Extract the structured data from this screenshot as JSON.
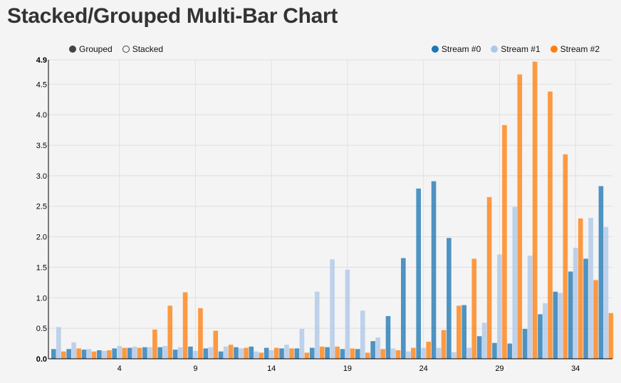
{
  "title": "Stacked/Grouped Multi-Bar Chart",
  "controls": [
    {
      "label": "Grouped",
      "selected": true
    },
    {
      "label": "Stacked",
      "selected": false
    }
  ],
  "chart_data": {
    "type": "bar",
    "mode": "grouped",
    "title": "Stacked/Grouped Multi-Bar Chart",
    "xlabel": "",
    "ylabel": "",
    "ylim": [
      0,
      4.9
    ],
    "yticks": [
      0.0,
      0.5,
      1.0,
      1.5,
      2.0,
      2.5,
      3.0,
      3.5,
      4.0,
      4.5,
      4.9
    ],
    "ytick_labels": [
      "0.0",
      "0.5",
      "1.0",
      "1.5",
      "2.0",
      "2.5",
      "3.0",
      "3.5",
      "4.0",
      "4.5",
      "4.9"
    ],
    "xticks": [
      "4",
      "9",
      "14",
      "19",
      "24",
      "29",
      "34"
    ],
    "legend_position": "top-right",
    "grid": true,
    "categories": [
      "0",
      "1",
      "2",
      "3",
      "4",
      "5",
      "6",
      "7",
      "8",
      "9",
      "10",
      "11",
      "12",
      "13",
      "14",
      "15",
      "16",
      "17",
      "18",
      "19",
      "20",
      "21",
      "22",
      "23",
      "24",
      "25",
      "26",
      "27",
      "28",
      "29",
      "30",
      "31",
      "32",
      "33",
      "34",
      "35"
    ],
    "series": [
      {
        "name": "Stream #0",
        "color": "#1f77b4",
        "values": [
          0.16,
          0.16,
          0.15,
          0.14,
          0.17,
          0.18,
          0.19,
          0.19,
          0.15,
          0.2,
          0.17,
          0.12,
          0.19,
          0.2,
          0.18,
          0.17,
          0.17,
          0.18,
          0.19,
          0.16,
          0.16,
          0.29,
          0.7,
          1.65,
          2.79,
          2.91,
          1.98,
          0.88,
          0.37,
          0.26,
          0.25,
          0.49,
          0.73,
          1.1,
          1.43,
          1.64
        ]
      },
      {
        "name": "Stream #1",
        "color": "#aec7e8",
        "values": [
          0.52,
          0.27,
          0.16,
          0.13,
          0.21,
          0.2,
          0.19,
          0.21,
          0.19,
          0.13,
          0.19,
          0.2,
          0.17,
          0.12,
          0.14,
          0.23,
          0.49,
          1.1,
          1.63,
          1.46,
          0.79,
          0.35,
          0.17,
          0.12,
          0.18,
          0.18,
          0.11,
          0.18,
          0.59,
          1.71,
          2.49,
          1.69,
          0.91,
          1.08,
          1.82,
          2.31
        ]
      },
      {
        "name": "Stream #2",
        "color": "#ff7f0e",
        "values": [
          0.12,
          0.17,
          0.12,
          0.14,
          0.18,
          0.18,
          0.48,
          0.87,
          1.09,
          0.83,
          0.46,
          0.23,
          0.18,
          0.1,
          0.18,
          0.17,
          0.1,
          0.2,
          0.2,
          0.17,
          0.1,
          0.16,
          0.14,
          0.18,
          0.28,
          0.47,
          0.87,
          1.64,
          2.65,
          3.83,
          4.66,
          4.87,
          4.38,
          3.35,
          2.3,
          1.29
        ]
      }
    ],
    "trailing_bars": [
      {
        "series": "Stream #0",
        "value": 2.83
      },
      {
        "series": "Stream #1",
        "value": 2.16
      },
      {
        "series": "Stream #2",
        "value": 0.75
      }
    ]
  }
}
